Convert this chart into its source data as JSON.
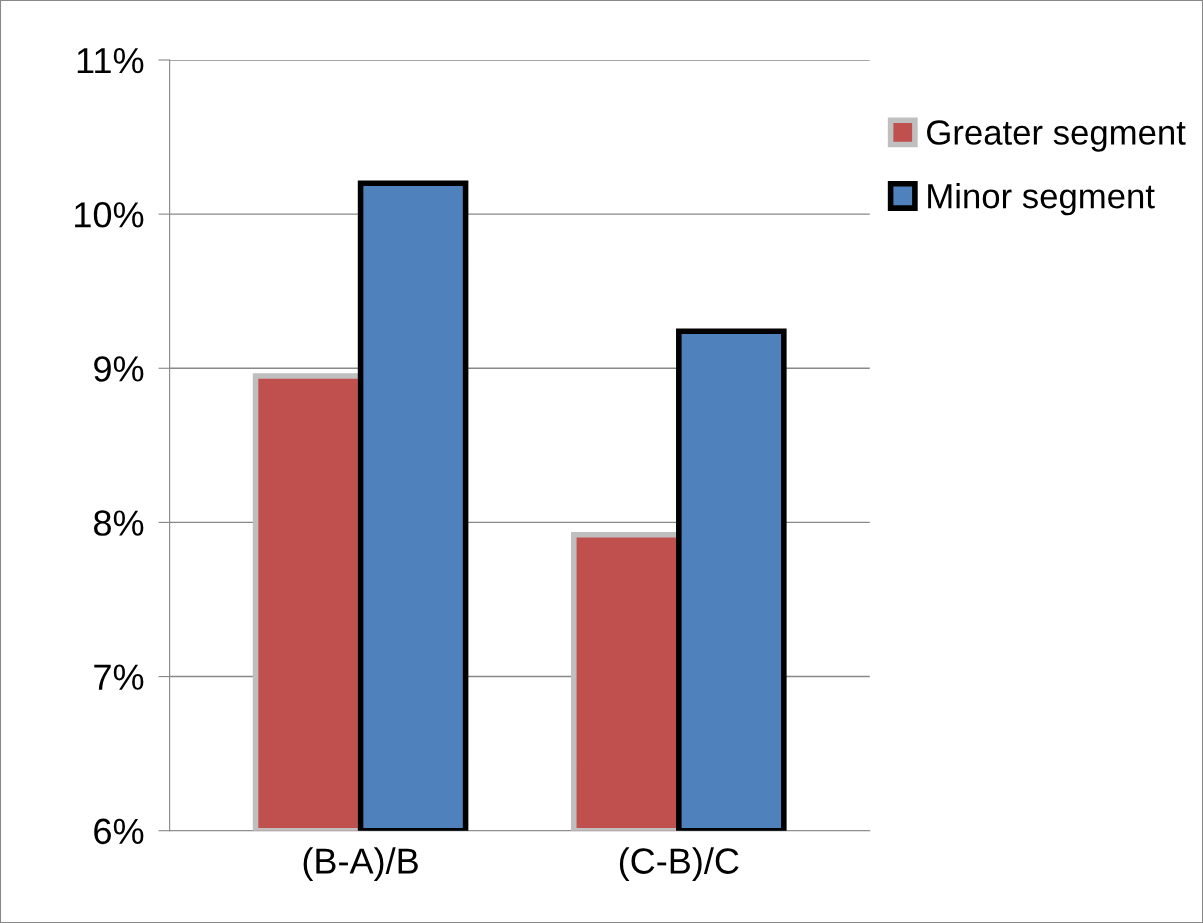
{
  "chart_data": {
    "type": "bar",
    "categories": [
      "(B-A)/B",
      "(C-B)/C"
    ],
    "series": [
      {
        "name": "Greater segment",
        "color": "#c0504d",
        "values": [
          8.95,
          7.92
        ]
      },
      {
        "name": "Minor segment",
        "color": "#4f81bd",
        "values": [
          10.2,
          9.24
        ]
      }
    ],
    "ylim": [
      6,
      11
    ],
    "yticks": [
      {
        "value": 6,
        "label": "6%"
      },
      {
        "value": 7,
        "label": "7%"
      },
      {
        "value": 8,
        "label": "8%"
      },
      {
        "value": 9,
        "label": "9%"
      },
      {
        "value": 10,
        "label": "10%"
      },
      {
        "value": 11,
        "label": "11%"
      }
    ],
    "grid": "y",
    "legend": "top right"
  }
}
